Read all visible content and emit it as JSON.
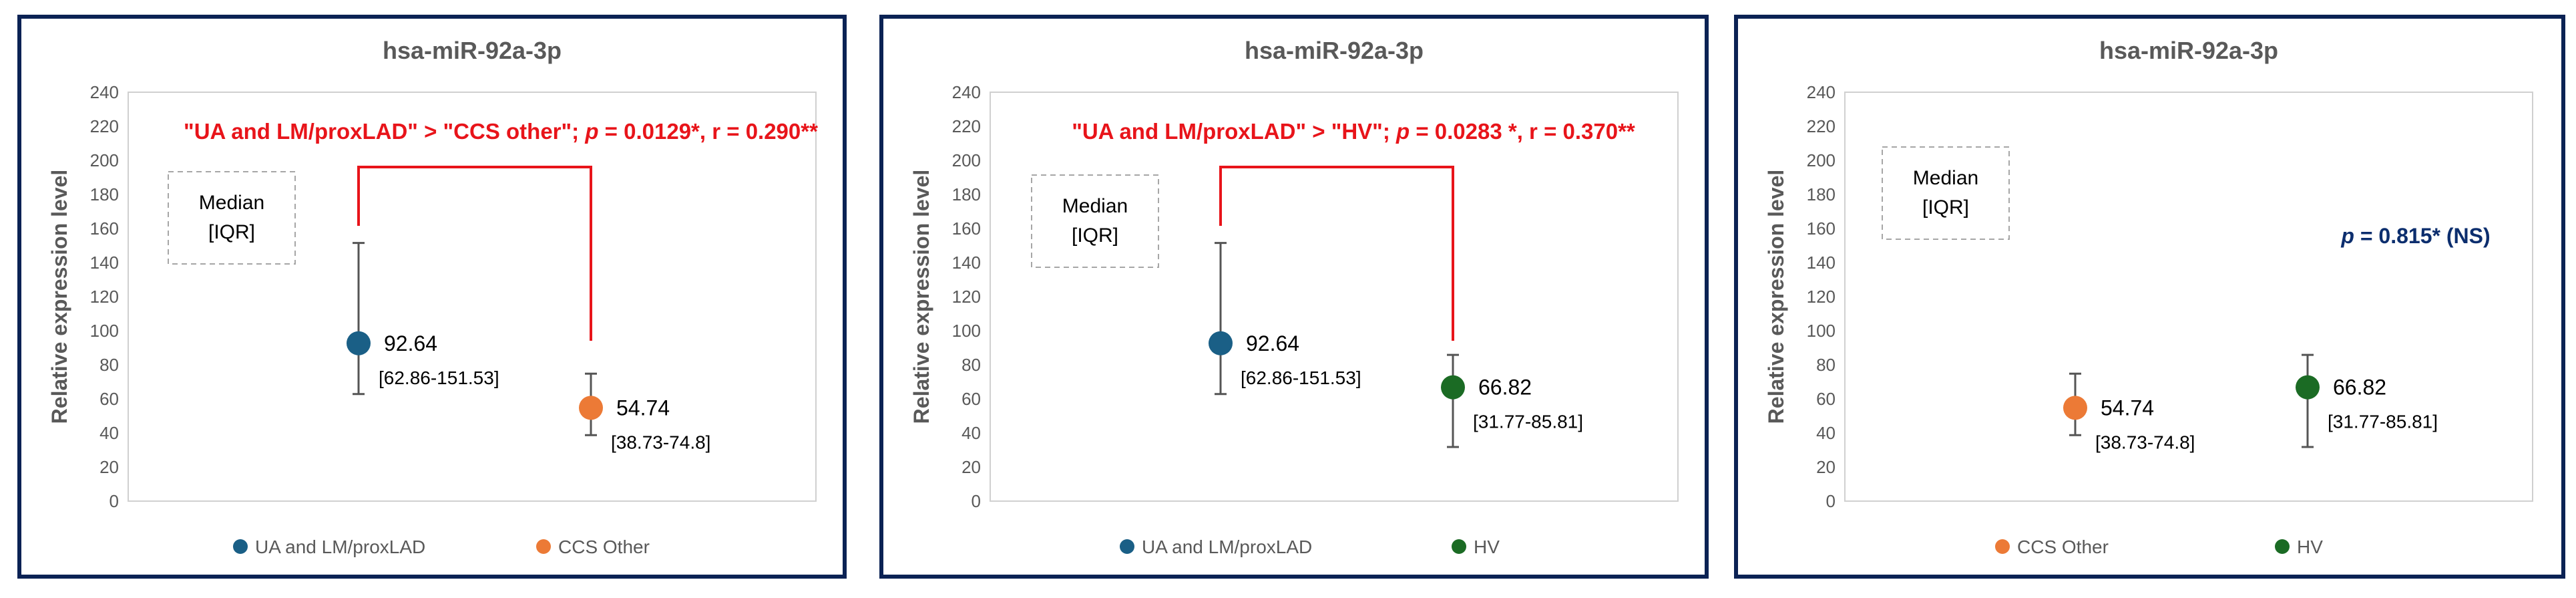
{
  "colors": {
    "ua_lm": "#1a5f86",
    "ccs": "#ec7a36",
    "hv": "#1b6b24",
    "bracket": "#e8141a",
    "pvalue_ns": "#0c2e6e",
    "frame": "#0b2254"
  },
  "chart_data": [
    {
      "type": "scatter",
      "title": "hsa-miR-92a-3p",
      "ylabel": "Relative expression level",
      "ylim": [
        0,
        240
      ],
      "yticks": [
        "0",
        "20",
        "40",
        "60",
        "80",
        "100",
        "120",
        "140",
        "160",
        "180",
        "200",
        "220",
        "240"
      ],
      "grid": false,
      "legend_position": "bottom",
      "box_text": [
        "Median",
        "[IQR]"
      ],
      "annotation": {
        "a": "\"UA and LM/proxLAD\" > \"CCS other\"; ",
        "p": "p",
        "b": " = 0.0129*, r = 0.290**"
      },
      "series": [
        {
          "name": "UA and LM/proxLAD",
          "color_key": "ua_lm",
          "median": 92.64,
          "q1": 62.86,
          "q3": 151.53,
          "label_value": "92.64",
          "label_iqr": "[62.86-151.53]"
        },
        {
          "name": "CCS Other",
          "color_key": "ccs",
          "median": 54.74,
          "q1": 38.73,
          "q3": 74.8,
          "label_value": "54.74",
          "label_iqr": "[38.73-74.8]"
        }
      ]
    },
    {
      "type": "scatter",
      "title": "hsa-miR-92a-3p",
      "ylabel": "Relative expression level",
      "ylim": [
        0,
        240
      ],
      "yticks": [
        "0",
        "20",
        "40",
        "60",
        "80",
        "100",
        "120",
        "140",
        "160",
        "180",
        "200",
        "220",
        "240"
      ],
      "grid": false,
      "legend_position": "bottom",
      "box_text": [
        "Median",
        "[IQR]"
      ],
      "annotation": {
        "a": "\"UA and LM/proxLAD\" > \"HV\"; ",
        "p": "p",
        "b": " = 0.0283 *, r = 0.370**"
      },
      "series": [
        {
          "name": "UA and LM/proxLAD",
          "color_key": "ua_lm",
          "median": 92.64,
          "q1": 62.86,
          "q3": 151.53,
          "label_value": "92.64",
          "label_iqr": "[62.86-151.53]"
        },
        {
          "name": "HV",
          "color_key": "hv",
          "median": 66.82,
          "q1": 31.77,
          "q3": 85.81,
          "label_value": "66.82",
          "label_iqr": "[31.77-85.81]"
        }
      ]
    },
    {
      "type": "scatter",
      "title": "hsa-miR-92a-3p",
      "ylabel": "Relative expression level",
      "ylim": [
        0,
        240
      ],
      "yticks": [
        "0",
        "20",
        "40",
        "60",
        "80",
        "100",
        "120",
        "140",
        "160",
        "180",
        "200",
        "220",
        "240"
      ],
      "grid": false,
      "legend_position": "bottom",
      "box_text": [
        "Median",
        "[IQR]"
      ],
      "pvalue": {
        "p": "p",
        "rest": " = 0.815* (NS)"
      },
      "series": [
        {
          "name": "CCS Other",
          "color_key": "ccs",
          "median": 54.74,
          "q1": 38.73,
          "q3": 74.8,
          "label_value": "54.74",
          "label_iqr": "[38.73-74.8]"
        },
        {
          "name": "HV",
          "color_key": "hv",
          "median": 66.82,
          "q1": 31.77,
          "q3": 85.81,
          "label_value": "66.82",
          "label_iqr": "[31.77-85.81]"
        }
      ]
    }
  ]
}
